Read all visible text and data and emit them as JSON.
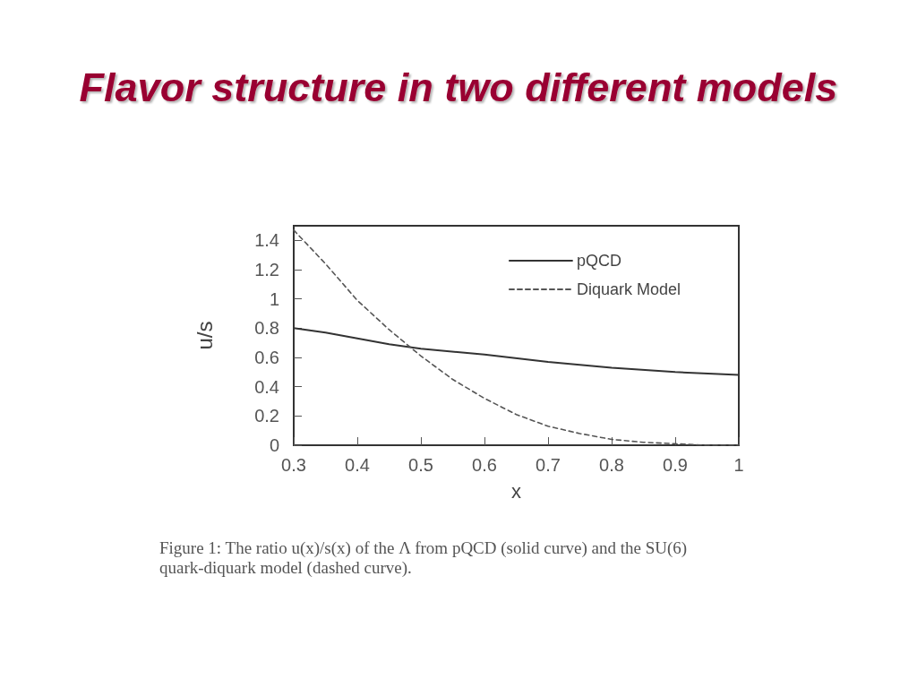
{
  "chart_data": {
    "type": "line",
    "title": "Flavor structure in two different models",
    "xlabel": "x",
    "ylabel": "u/s",
    "xlim": [
      0.3,
      1
    ],
    "xticks": [
      0.3,
      0.4,
      0.5,
      0.6,
      0.7,
      0.8,
      0.9,
      1
    ],
    "ylim": [
      0,
      1.5
    ],
    "yticks": [
      0,
      0.2,
      0.4,
      0.6,
      0.8,
      1,
      1.2,
      1.4
    ],
    "legend": "top right",
    "marker": "none",
    "line_style": "solid",
    "series": [
      {
        "name": "pQCD",
        "color": "#333333",
        "x": [
          0.3,
          0.35,
          0.4,
          0.45,
          0.5,
          0.6,
          0.7,
          0.8,
          0.9,
          1
        ],
        "values": [
          0.8,
          0.77,
          0.73,
          0.69,
          0.66,
          0.62,
          0.57,
          0.53,
          0.5,
          0.48
        ]
      },
      {
        "name": "Diquark Model",
        "color": "#555555",
        "line_style": "dashed",
        "x": [
          0.3,
          0.35,
          0.4,
          0.45,
          0.5,
          0.55,
          0.6,
          0.65,
          0.7,
          0.75,
          0.8,
          0.85,
          0.9,
          0.95,
          1
        ],
        "values": [
          1.47,
          1.24,
          0.99,
          0.79,
          0.61,
          0.45,
          0.32,
          0.21,
          0.13,
          0.08,
          0.04,
          0.02,
          0.01,
          0,
          0
        ]
      }
    ],
    "annotations": [
      "Figure 1: The ratio u(x)/s(x) of the Λ from pQCD (solid curve) and the SU(6) quark-diquark model (dashed curve)."
    ]
  }
}
